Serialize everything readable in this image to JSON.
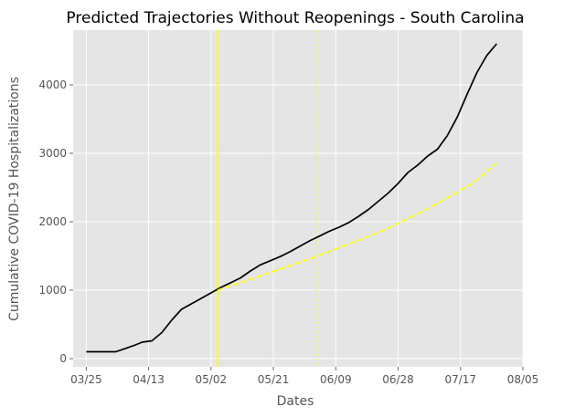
{
  "chart_data": {
    "type": "line",
    "title": "Predicted Trajectories Without Reopenings - South Carolina",
    "xlabel": "Dates",
    "ylabel": "Cumulative COVID-19 Hospitalizations",
    "x_ticks": [
      "03/25",
      "04/13",
      "05/02",
      "05/21",
      "06/09",
      "06/28",
      "07/17",
      "08/05"
    ],
    "y_ticks": [
      0,
      1000,
      2000,
      3000,
      4000
    ],
    "xlim": [
      "2020-03-21",
      "2020-08-05"
    ],
    "ylim": [
      -120,
      4800
    ],
    "grid": true,
    "background": "#E5E5E5",
    "series": [
      {
        "color": "#000000",
        "style": "solid",
        "x": [
          "2020-03-25",
          "2020-03-28",
          "2020-03-31",
          "2020-04-03",
          "2020-04-06",
          "2020-04-09",
          "2020-04-11",
          "2020-04-14",
          "2020-04-17",
          "2020-04-20",
          "2020-04-23",
          "2020-04-26",
          "2020-04-29",
          "2020-05-02",
          "2020-05-05",
          "2020-05-08",
          "2020-05-11",
          "2020-05-14",
          "2020-05-17",
          "2020-05-20",
          "2020-05-23",
          "2020-05-26",
          "2020-05-29",
          "2020-06-01",
          "2020-06-04",
          "2020-06-07",
          "2020-06-10",
          "2020-06-13",
          "2020-06-16",
          "2020-06-19",
          "2020-06-22",
          "2020-06-25",
          "2020-06-28",
          "2020-07-01",
          "2020-07-04",
          "2020-07-07",
          "2020-07-10",
          "2020-07-13",
          "2020-07-16",
          "2020-07-19",
          "2020-07-22",
          "2020-07-25",
          "2020-07-28"
        ],
        "values": [
          100,
          100,
          100,
          100,
          150,
          200,
          240,
          260,
          380,
          560,
          720,
          800,
          880,
          960,
          1040,
          1110,
          1180,
          1280,
          1370,
          1430,
          1490,
          1560,
          1640,
          1720,
          1790,
          1860,
          1920,
          1990,
          2080,
          2180,
          2300,
          2420,
          2560,
          2720,
          2830,
          2960,
          3060,
          3260,
          3530,
          3860,
          4180,
          4430,
          4600
        ]
      },
      {
        "color": "#FFFF00",
        "style": "dashed",
        "x": [
          "2020-05-04",
          "2020-05-10",
          "2020-05-16",
          "2020-05-22",
          "2020-05-28",
          "2020-06-03",
          "2020-06-09",
          "2020-06-15",
          "2020-06-21",
          "2020-06-27",
          "2020-07-03",
          "2020-07-09",
          "2020-07-15",
          "2020-07-21",
          "2020-07-28"
        ],
        "values": [
          1000,
          1095,
          1190,
          1290,
          1390,
          1490,
          1600,
          1710,
          1820,
          1950,
          2090,
          2240,
          2400,
          2570,
          2850
        ]
      }
    ],
    "vertical_lines": [
      {
        "x": "2020-05-04",
        "color": "#FFFF00",
        "style": "solid"
      },
      {
        "x": "2020-06-03",
        "color": "#FFFF00",
        "style": "dotted"
      }
    ]
  }
}
